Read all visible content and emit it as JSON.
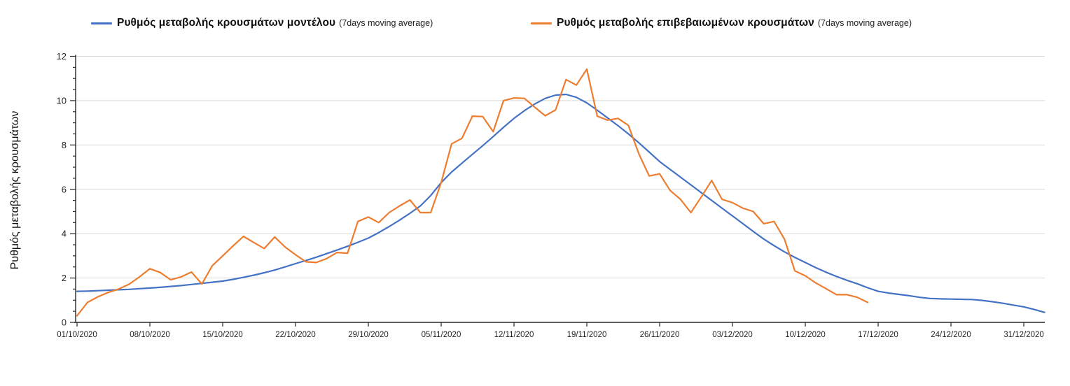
{
  "chart_data": {
    "type": "line",
    "title": "",
    "xlabel": "",
    "ylabel": "Ρυθμός μεταβολής κρουσμάτων",
    "ylim": [
      0,
      12
    ],
    "y_major_ticks": [
      0,
      2,
      4,
      6,
      8,
      10,
      12
    ],
    "y_minor_step": 0.5,
    "grid": "horizontal-major-only",
    "legend_position": "top",
    "x_tick_labels": [
      "01/10/2020",
      "08/10/2020",
      "15/10/2020",
      "22/10/2020",
      "29/10/2020",
      "05/11/2020",
      "12/11/2020",
      "19/11/2020",
      "26/11/2020",
      "03/12/2020",
      "10/12/2020",
      "17/12/2020",
      "24/12/2020",
      "31/12/2020"
    ],
    "x_tick_interval_days": 7,
    "x_start_date": "01/10/2020",
    "colors": {
      "model_line": "#4472C4",
      "confirmed_line": "#ED7D31",
      "grid": "#D9D9D9",
      "axis": "#262626",
      "text": "#262626"
    },
    "series": [
      {
        "name": "Ρυθμός μεταβολής κρουσμάτων μοντέλου",
        "suffix": "(7days moving average)",
        "color": "#4472C4",
        "data_name": "model-series-line",
        "start_day": 0,
        "values": [
          1.4,
          1.41,
          1.43,
          1.45,
          1.47,
          1.49,
          1.52,
          1.55,
          1.58,
          1.62,
          1.66,
          1.71,
          1.76,
          1.81,
          1.86,
          1.94,
          2.03,
          2.13,
          2.24,
          2.36,
          2.5,
          2.65,
          2.79,
          2.94,
          3.1,
          3.26,
          3.43,
          3.61,
          3.8,
          4.05,
          4.32,
          4.61,
          4.92,
          5.25,
          5.72,
          6.3,
          6.78,
          7.18,
          7.58,
          7.97,
          8.38,
          8.8,
          9.2,
          9.55,
          9.85,
          10.1,
          10.25,
          10.28,
          10.15,
          9.9,
          9.57,
          9.22,
          8.87,
          8.5,
          8.1,
          7.68,
          7.25,
          6.9,
          6.55,
          6.2,
          5.85,
          5.5,
          5.15,
          4.8,
          4.45,
          4.1,
          3.76,
          3.46,
          3.18,
          2.93,
          2.7,
          2.47,
          2.26,
          2.07,
          1.9,
          1.74,
          1.56,
          1.4,
          1.32,
          1.26,
          1.2,
          1.13,
          1.08,
          1.06,
          1.05,
          1.04,
          1.03,
          0.99,
          0.93,
          0.86,
          0.78,
          0.7,
          0.58,
          0.45
        ]
      },
      {
        "name": "Ρυθμός μεταβολής επιβεβαιωμένων κρουσμάτων",
        "suffix": "(7days moving average)",
        "color": "#ED7D31",
        "data_name": "confirmed-series-line",
        "start_day": 0,
        "values": [
          0.3,
          0.9,
          1.15,
          1.35,
          1.5,
          1.72,
          2.05,
          2.42,
          2.25,
          1.92,
          2.05,
          2.27,
          1.73,
          2.55,
          3.0,
          3.45,
          3.88,
          3.6,
          3.33,
          3.85,
          3.4,
          3.05,
          2.73,
          2.7,
          2.88,
          3.15,
          3.12,
          4.55,
          4.75,
          4.5,
          4.95,
          5.25,
          5.52,
          4.95,
          4.95,
          6.3,
          8.05,
          8.3,
          9.3,
          9.28,
          8.6,
          10.0,
          10.12,
          10.1,
          9.7,
          9.32,
          9.58,
          10.95,
          10.7,
          11.42,
          9.3,
          9.12,
          9.2,
          8.88,
          7.6,
          6.6,
          6.7,
          5.95,
          5.55,
          4.95,
          5.65,
          6.4,
          5.55,
          5.4,
          5.15,
          5.0,
          4.45,
          4.55,
          3.75,
          2.32,
          2.1,
          1.78,
          1.52,
          1.25,
          1.25,
          1.13,
          0.9
        ]
      }
    ]
  }
}
